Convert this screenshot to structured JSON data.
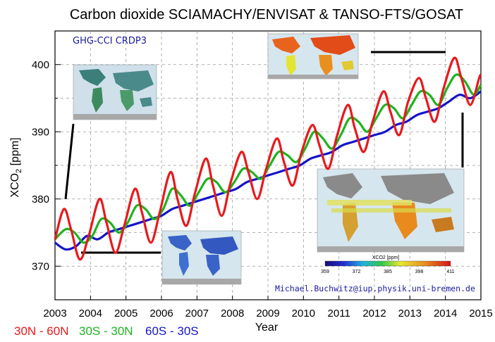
{
  "chart_data": {
    "type": "line",
    "title": "Carbon dioxide SCIAMACHY/ENVISAT & TANSO-FTS/GOSAT",
    "product_label": "GHG-CCI CRDP3",
    "credit": "Michael.Buchwitz@iup.physik.uni-bremen.de",
    "xlabel": "Year",
    "ylabel": "XCO",
    "ylabel_sub": "2",
    "ylabel_unit": " [ppm]",
    "xlim": [
      2003,
      2015
    ],
    "ylim": [
      365,
      405
    ],
    "xticks": [
      "2003",
      "2004",
      "2005",
      "2006",
      "2007",
      "2008",
      "2009",
      "2010",
      "2011",
      "2012",
      "2013",
      "2014",
      "2015"
    ],
    "yticks": [
      "370",
      "380",
      "390",
      "400"
    ],
    "grid": true,
    "colors": {
      "red": "#e8191c",
      "green": "#1fb31f",
      "blue": "#1414c8",
      "credit": "#1a1aa0"
    },
    "series": [
      {
        "name": "30N - 60N",
        "color": "#e8191c",
        "x": [
          2003.0,
          2003.25,
          2003.45,
          2003.7,
          2003.95,
          2004.25,
          2004.45,
          2004.7,
          2004.95,
          2005.25,
          2005.45,
          2005.7,
          2005.95,
          2006.25,
          2006.45,
          2006.7,
          2006.95,
          2007.25,
          2007.45,
          2007.7,
          2007.95,
          2008.25,
          2008.45,
          2008.7,
          2008.95,
          2009.25,
          2009.45,
          2009.7,
          2009.95,
          2010.25,
          2010.45,
          2010.7,
          2010.95,
          2011.25,
          2011.45,
          2011.7,
          2011.95,
          2012.25,
          2012.45,
          2012.7,
          2012.95,
          2013.25,
          2013.45,
          2013.7,
          2013.95,
          2014.25,
          2014.45,
          2014.7,
          2014.95,
          2015.0
        ],
        "y": [
          374.0,
          378.5,
          375.5,
          371.0,
          374.5,
          380.0,
          376.5,
          372.0,
          376.0,
          381.5,
          378.0,
          373.5,
          378.0,
          384.0,
          380.0,
          376.0,
          381.0,
          386.0,
          382.0,
          377.5,
          382.5,
          387.0,
          384.0,
          380.0,
          384.5,
          389.0,
          385.5,
          382.0,
          387.0,
          391.0,
          388.0,
          384.5,
          389.5,
          394.0,
          390.5,
          387.0,
          391.5,
          396.0,
          393.0,
          389.5,
          394.5,
          398.0,
          395.0,
          391.5,
          396.5,
          401.0,
          398.0,
          394.0,
          398.0,
          398.5
        ]
      },
      {
        "name": "30S - 30N",
        "color": "#1fb31f",
        "x": [
          2003.0,
          2003.3,
          2003.55,
          2003.8,
          2004.05,
          2004.3,
          2004.55,
          2004.8,
          2005.05,
          2005.3,
          2005.55,
          2005.8,
          2006.05,
          2006.3,
          2006.55,
          2006.8,
          2007.05,
          2007.3,
          2007.55,
          2007.8,
          2008.05,
          2008.3,
          2008.55,
          2008.8,
          2009.05,
          2009.3,
          2009.55,
          2009.8,
          2010.05,
          2010.3,
          2010.55,
          2010.8,
          2011.05,
          2011.3,
          2011.55,
          2011.8,
          2012.05,
          2012.3,
          2012.55,
          2012.8,
          2013.05,
          2013.3,
          2013.55,
          2013.8,
          2014.05,
          2014.3,
          2014.55,
          2014.8,
          2015.0
        ],
        "y": [
          374.0,
          375.5,
          375.0,
          373.5,
          374.5,
          377.0,
          376.5,
          375.0,
          376.5,
          379.0,
          378.5,
          377.0,
          378.5,
          381.5,
          380.5,
          379.0,
          381.0,
          383.0,
          382.5,
          381.0,
          382.5,
          384.5,
          384.0,
          383.0,
          385.0,
          387.0,
          386.5,
          385.5,
          387.5,
          390.0,
          389.0,
          387.5,
          389.5,
          392.0,
          391.5,
          390.0,
          392.0,
          394.0,
          393.5,
          392.0,
          394.0,
          396.0,
          395.5,
          394.0,
          396.5,
          398.5,
          397.5,
          395.5,
          397.0
        ]
      },
      {
        "name": "60S - 30S",
        "color": "#1414c8",
        "x": [
          2003.0,
          2003.3,
          2003.6,
          2003.9,
          2004.2,
          2004.5,
          2004.8,
          2005.1,
          2005.4,
          2005.7,
          2006.0,
          2006.3,
          2006.6,
          2006.9,
          2007.2,
          2007.5,
          2007.8,
          2008.1,
          2008.4,
          2008.7,
          2009.0,
          2009.3,
          2009.6,
          2009.9,
          2010.2,
          2010.5,
          2010.8,
          2011.1,
          2011.4,
          2011.7,
          2012.0,
          2012.3,
          2012.6,
          2012.9,
          2013.2,
          2013.5,
          2013.8,
          2014.1,
          2014.4,
          2014.7,
          2015.0
        ],
        "y": [
          373.5,
          372.5,
          373.0,
          374.5,
          374.0,
          375.0,
          375.5,
          376.0,
          376.5,
          377.0,
          377.5,
          378.5,
          379.0,
          379.5,
          380.0,
          380.5,
          381.0,
          381.5,
          382.5,
          383.0,
          383.5,
          384.0,
          384.5,
          385.0,
          386.0,
          386.5,
          387.0,
          388.0,
          388.5,
          389.0,
          389.5,
          390.0,
          391.0,
          391.5,
          392.5,
          393.0,
          393.5,
          394.5,
          395.5,
          395.0,
          396.0
        ]
      }
    ],
    "colorbar": {
      "title": "XCO2 [ppm]",
      "ticks": [
        "359",
        "372",
        "385",
        "398",
        "411"
      ]
    },
    "legend_separator": " - ",
    "legend": [
      {
        "a": "30N",
        "b": "60N",
        "color": "#e8191c"
      },
      {
        "a": "30S",
        "b": "30N",
        "color": "#1fb31f"
      },
      {
        "a": "60S",
        "b": "30S",
        "color": "#1414c8"
      }
    ]
  }
}
